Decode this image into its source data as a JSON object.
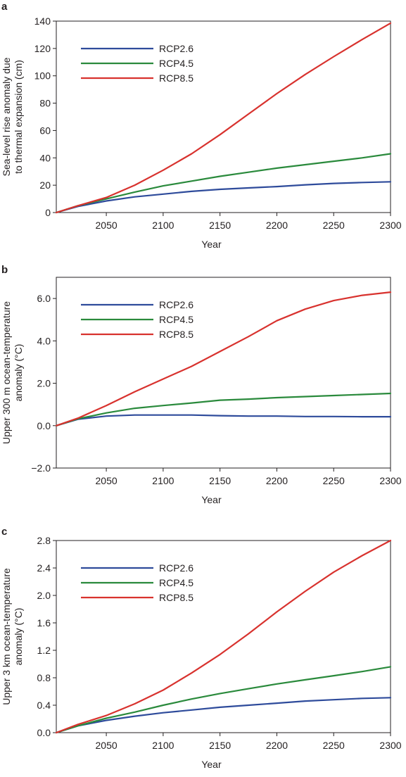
{
  "colors": {
    "RCP2.6": "#2e4b9b",
    "RCP4.5": "#2a8a3c",
    "RCP8.5": "#d8322e",
    "axis": "#231f20"
  },
  "chart_data": [
    {
      "panel_label": "a",
      "type": "line",
      "xlabel": "Year",
      "ylabel": [
        "Sea-level rise anomaly due",
        "to thermal expansion (cm)"
      ],
      "xlim": [
        2006,
        2300
      ],
      "ylim": [
        0,
        140
      ],
      "xticks": [
        2050,
        2100,
        2150,
        2200,
        2250,
        2300
      ],
      "xtick_labels": [
        "2050",
        "2100",
        "2150",
        "2200",
        "2250",
        "2300"
      ],
      "yticks": [
        0,
        20,
        40,
        60,
        80,
        100,
        120,
        140
      ],
      "ytick_labels": [
        "0",
        "20",
        "40",
        "60",
        "80",
        "100",
        "120",
        "140"
      ],
      "legend_position": "top-left",
      "series": [
        {
          "name": "RCP2.6",
          "x": [
            2006,
            2025,
            2050,
            2075,
            2100,
            2125,
            2150,
            2175,
            2200,
            2225,
            2250,
            2275,
            2300
          ],
          "y": [
            0,
            4.5,
            8.5,
            11.5,
            13.5,
            15.5,
            17,
            18,
            19,
            20.3,
            21.3,
            22,
            22.5
          ]
        },
        {
          "name": "RCP4.5",
          "x": [
            2006,
            2025,
            2050,
            2075,
            2100,
            2125,
            2150,
            2175,
            2200,
            2225,
            2250,
            2275,
            2300
          ],
          "y": [
            0,
            5,
            10,
            15,
            19.5,
            23,
            26.5,
            29.5,
            32.5,
            35,
            37.5,
            40,
            43
          ]
        },
        {
          "name": "RCP8.5",
          "x": [
            2006,
            2025,
            2050,
            2075,
            2100,
            2125,
            2150,
            2175,
            2200,
            2225,
            2250,
            2275,
            2300
          ],
          "y": [
            0,
            5,
            11,
            20,
            31,
            43,
            57,
            72,
            87,
            101,
            114,
            126.5,
            138.5
          ]
        }
      ]
    },
    {
      "panel_label": "b",
      "type": "line",
      "xlabel": "Year",
      "ylabel": [
        "Upper 300 m ocean-temperature",
        "anomaly (°C)"
      ],
      "xlim": [
        2006,
        2300
      ],
      "ylim": [
        -2.0,
        7.0
      ],
      "xticks": [
        2050,
        2100,
        2150,
        2200,
        2250,
        2300
      ],
      "xtick_labels": [
        "2050",
        "2100",
        "2150",
        "2200",
        "2250",
        "2300"
      ],
      "yticks": [
        -2.0,
        0.0,
        2.0,
        4.0,
        6.0
      ],
      "ytick_labels": [
        "−2.0",
        "0.0",
        "2.0",
        "4.0",
        "6.0"
      ],
      "legend_position": "top-left",
      "series": [
        {
          "name": "RCP2.6",
          "x": [
            2006,
            2025,
            2050,
            2075,
            2100,
            2125,
            2150,
            2175,
            2200,
            2225,
            2250,
            2275,
            2300
          ],
          "y": [
            0,
            0.3,
            0.45,
            0.5,
            0.5,
            0.5,
            0.47,
            0.45,
            0.45,
            0.43,
            0.43,
            0.42,
            0.42
          ]
        },
        {
          "name": "RCP4.5",
          "x": [
            2006,
            2025,
            2050,
            2075,
            2100,
            2125,
            2150,
            2175,
            2200,
            2225,
            2250,
            2275,
            2300
          ],
          "y": [
            0,
            0.32,
            0.6,
            0.82,
            0.95,
            1.07,
            1.2,
            1.25,
            1.32,
            1.37,
            1.42,
            1.47,
            1.52
          ]
        },
        {
          "name": "RCP8.5",
          "x": [
            2006,
            2025,
            2050,
            2075,
            2100,
            2125,
            2150,
            2175,
            2200,
            2225,
            2250,
            2275,
            2300
          ],
          "y": [
            0,
            0.35,
            0.95,
            1.6,
            2.2,
            2.8,
            3.5,
            4.2,
            4.95,
            5.5,
            5.9,
            6.15,
            6.3
          ]
        }
      ]
    },
    {
      "panel_label": "c",
      "type": "line",
      "xlabel": "Year",
      "ylabel": [
        "Upper 3 km ocean-temperature",
        "anomaly (°C)"
      ],
      "xlim": [
        2006,
        2300
      ],
      "ylim": [
        0.0,
        2.8
      ],
      "xticks": [
        2050,
        2100,
        2150,
        2200,
        2250,
        2300
      ],
      "xtick_labels": [
        "2050",
        "2100",
        "2150",
        "2200",
        "2250",
        "2300"
      ],
      "yticks": [
        0.0,
        0.4,
        0.8,
        1.2,
        1.6,
        2.0,
        2.4,
        2.8
      ],
      "ytick_labels": [
        "0.0",
        "0.4",
        "0.8",
        "1.2",
        "1.6",
        "2.0",
        "2.4",
        "2.8"
      ],
      "legend_position": "top-left",
      "series": [
        {
          "name": "RCP2.6",
          "x": [
            2006,
            2025,
            2050,
            2075,
            2100,
            2125,
            2150,
            2175,
            2200,
            2225,
            2250,
            2275,
            2300
          ],
          "y": [
            0,
            0.1,
            0.18,
            0.24,
            0.29,
            0.33,
            0.37,
            0.4,
            0.43,
            0.46,
            0.48,
            0.5,
            0.51
          ]
        },
        {
          "name": "RCP4.5",
          "x": [
            2006,
            2025,
            2050,
            2075,
            2100,
            2125,
            2150,
            2175,
            2200,
            2225,
            2250,
            2275,
            2300
          ],
          "y": [
            0,
            0.1,
            0.21,
            0.3,
            0.4,
            0.49,
            0.57,
            0.64,
            0.71,
            0.77,
            0.83,
            0.89,
            0.96
          ]
        },
        {
          "name": "RCP8.5",
          "x": [
            2006,
            2025,
            2050,
            2075,
            2100,
            2125,
            2150,
            2175,
            2200,
            2225,
            2250,
            2275,
            2300
          ],
          "y": [
            0,
            0.12,
            0.25,
            0.42,
            0.62,
            0.87,
            1.14,
            1.44,
            1.76,
            2.06,
            2.34,
            2.58,
            2.8
          ]
        }
      ]
    }
  ]
}
